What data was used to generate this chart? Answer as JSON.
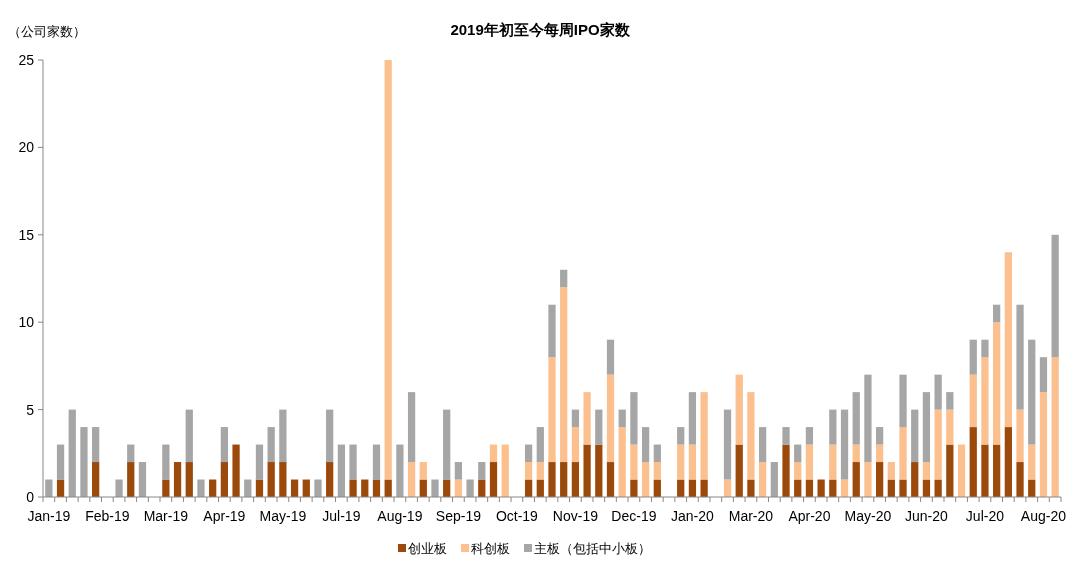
{
  "chart_data": {
    "type": "bar",
    "title": "2019年初至今每周IPO家数",
    "ylabel": "（公司家数）",
    "stacked": true,
    "legend": "bottom",
    "ylim": [
      0,
      25
    ],
    "yticks": [
      0,
      5,
      10,
      15,
      20,
      25
    ],
    "categories": [
      "Jan-19",
      null,
      null,
      null,
      null,
      "Feb-19",
      null,
      null,
      null,
      null,
      "Mar-19",
      null,
      null,
      null,
      null,
      "Apr-19",
      null,
      null,
      null,
      null,
      "May-19",
      null,
      null,
      null,
      null,
      "Jul-19",
      null,
      null,
      null,
      null,
      "Aug-19",
      null,
      null,
      null,
      null,
      "Sep-19",
      null,
      null,
      null,
      null,
      "Oct-19",
      null,
      null,
      null,
      null,
      "Nov-19",
      null,
      null,
      null,
      null,
      "Dec-19",
      null,
      null,
      null,
      null,
      "Jan-20",
      null,
      null,
      null,
      null,
      "Mar-20",
      null,
      null,
      null,
      null,
      "Apr-20",
      null,
      null,
      null,
      null,
      "May-20",
      null,
      null,
      null,
      null,
      "Jun-20",
      null,
      null,
      null,
      null,
      "Jul-20",
      null,
      null,
      null,
      null,
      "Aug-20",
      null
    ],
    "series": [
      {
        "name": "创业板",
        "color": "#9c4a0c",
        "values": [
          0,
          1,
          0,
          0,
          2,
          0,
          0,
          2,
          0,
          0,
          1,
          2,
          2,
          0,
          1,
          2,
          3,
          0,
          1,
          2,
          2,
          1,
          1,
          0,
          2,
          0,
          1,
          1,
          1,
          1,
          0,
          0,
          1,
          0,
          1,
          0,
          0,
          1,
          2,
          0,
          0,
          1,
          1,
          2,
          2,
          2,
          3,
          3,
          2,
          0,
          1,
          0,
          1,
          0,
          1,
          1,
          1,
          0,
          0,
          3,
          1,
          0,
          0,
          3,
          1,
          1,
          1,
          1,
          0,
          2,
          0,
          2,
          1,
          1,
          2,
          1,
          1,
          3,
          0,
          4,
          3,
          3,
          4,
          2,
          1,
          0,
          0
        ]
      },
      {
        "name": "科创板",
        "color": "#fbc08e",
        "values": [
          0,
          0,
          0,
          0,
          0,
          0,
          0,
          0,
          0,
          0,
          0,
          0,
          0,
          0,
          0,
          0,
          0,
          0,
          0,
          0,
          0,
          0,
          0,
          0,
          0,
          0,
          0,
          0,
          0,
          24,
          0,
          2,
          1,
          0,
          0,
          1,
          0,
          0,
          1,
          3,
          0,
          1,
          1,
          6,
          10,
          2,
          3,
          0,
          5,
          4,
          2,
          2,
          1,
          0,
          2,
          2,
          5,
          0,
          1,
          4,
          5,
          2,
          0,
          0,
          1,
          2,
          0,
          2,
          1,
          1,
          2,
          1,
          1,
          3,
          0,
          1,
          4,
          2,
          3,
          3,
          5,
          7,
          10,
          3,
          2,
          6,
          8
        ]
      },
      {
        "name": "主板（包括中小板）",
        "color": "#a6a6a6",
        "values": [
          1,
          2,
          5,
          4,
          2,
          0,
          1,
          1,
          2,
          0,
          2,
          0,
          3,
          1,
          0,
          2,
          0,
          1,
          2,
          2,
          3,
          0,
          0,
          1,
          3,
          3,
          2,
          0,
          2,
          0,
          3,
          4,
          0,
          1,
          4,
          1,
          1,
          1,
          0,
          0,
          0,
          1,
          2,
          3,
          1,
          1,
          0,
          2,
          2,
          1,
          3,
          2,
          1,
          0,
          1,
          3,
          0,
          0,
          4,
          0,
          0,
          2,
          2,
          1,
          1,
          1,
          0,
          2,
          4,
          3,
          5,
          1,
          0,
          3,
          3,
          4,
          2,
          1,
          0,
          2,
          1,
          1,
          0,
          6,
          6,
          2,
          7
        ]
      }
    ]
  }
}
